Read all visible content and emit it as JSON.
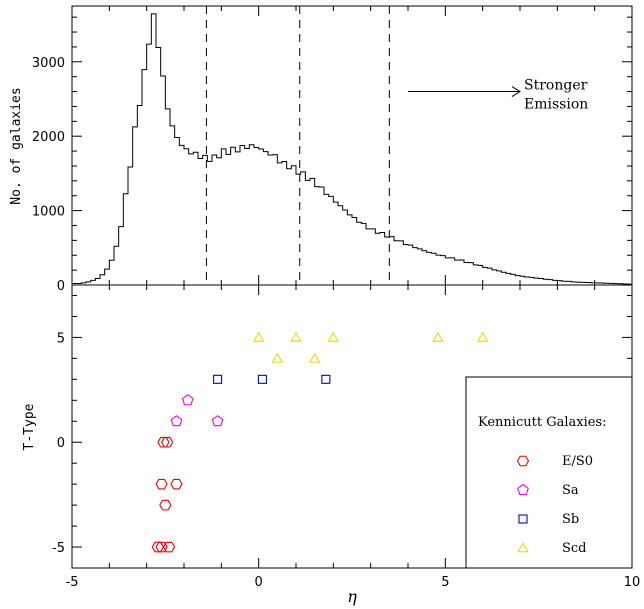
{
  "chart_data": [
    {
      "type": "histogram",
      "ylabel": "No. of galaxies",
      "xlim": [
        -5,
        10
      ],
      "ylim": [
        0,
        3750
      ],
      "yticks": [
        0,
        1000,
        2000,
        3000
      ],
      "bin_width": 0.125,
      "histogram": {
        "x": [
          -4.75,
          -4.5,
          -4.25,
          -4.0,
          -3.75,
          -3.5,
          -3.25,
          -3.0,
          -2.9,
          -2.8,
          -2.7,
          -2.6,
          -2.5,
          -2.4,
          -2.3,
          -2.2,
          -2.1,
          -2.0,
          -1.9,
          -1.8,
          -1.7,
          -1.6,
          -1.5,
          -1.4,
          -1.2,
          -1.0,
          -0.8,
          -0.6,
          -0.4,
          -0.2,
          0.0,
          0.2,
          0.4,
          0.6,
          0.8,
          1.0,
          1.2,
          1.5,
          2.0,
          2.5,
          3.0,
          3.5,
          4.0,
          4.5,
          5.0,
          5.5,
          6.0,
          6.5,
          7.0,
          7.5,
          8.0,
          8.5,
          9.0,
          9.5,
          10.0
        ],
        "counts": [
          20,
          50,
          100,
          250,
          600,
          1400,
          2300,
          3000,
          3500,
          3580,
          3300,
          2900,
          2550,
          2300,
          2100,
          2000,
          1900,
          1850,
          1800,
          1780,
          1760,
          1740,
          1720,
          1700,
          1700,
          1780,
          1800,
          1820,
          1850,
          1870,
          1850,
          1780,
          1750,
          1650,
          1600,
          1550,
          1480,
          1380,
          1150,
          920,
          750,
          650,
          540,
          450,
          380,
          320,
          250,
          180,
          120,
          90,
          60,
          40,
          30,
          20,
          10
        ]
      },
      "vlines": [
        -1.4,
        1.1,
        3.5
      ],
      "annotation": {
        "line1": "Stronger",
        "line2": "Emission",
        "x_from": 4.0,
        "x_to": 7.0,
        "y": 2600
      }
    },
    {
      "type": "scatter",
      "xlabel": "η",
      "ylabel": "T-Type",
      "xlim": [
        -5,
        10
      ],
      "ylim": [
        -6,
        7.5
      ],
      "xticks": [
        -5,
        0,
        5,
        10
      ],
      "yticks": [
        -5,
        0,
        5
      ],
      "legend": {
        "title": "Kennicutt Galaxies:",
        "position": "bottom-right",
        "entries": [
          "E/S0",
          "Sa",
          "Sb",
          "Scd"
        ]
      },
      "series": [
        {
          "name": "E/S0",
          "marker": "hexagon",
          "color": "#ee0000",
          "points": [
            [
              -2.6,
              -5
            ],
            [
              -2.7,
              -5
            ],
            [
              -2.4,
              -5
            ],
            [
              -2.5,
              -3
            ],
            [
              -2.6,
              -2
            ],
            [
              -2.2,
              -2
            ],
            [
              -2.55,
              0
            ],
            [
              -2.45,
              0
            ]
          ]
        },
        {
          "name": "Sa",
          "marker": "pentagon",
          "color": "#ee00ee",
          "points": [
            [
              -2.2,
              1
            ],
            [
              -1.9,
              2
            ],
            [
              -1.1,
              1
            ]
          ]
        },
        {
          "name": "Sb",
          "marker": "square",
          "color": "#0000dd",
          "points": [
            [
              -1.1,
              3
            ],
            [
              0.1,
              3
            ],
            [
              1.8,
              3
            ]
          ]
        },
        {
          "name": "Scd",
          "marker": "triangle",
          "color": "#e8d800",
          "points": [
            [
              0.0,
              5
            ],
            [
              0.5,
              4
            ],
            [
              1.0,
              5
            ],
            [
              1.5,
              4
            ],
            [
              2.0,
              5
            ],
            [
              4.8,
              5
            ],
            [
              6.0,
              5
            ]
          ]
        }
      ]
    }
  ]
}
